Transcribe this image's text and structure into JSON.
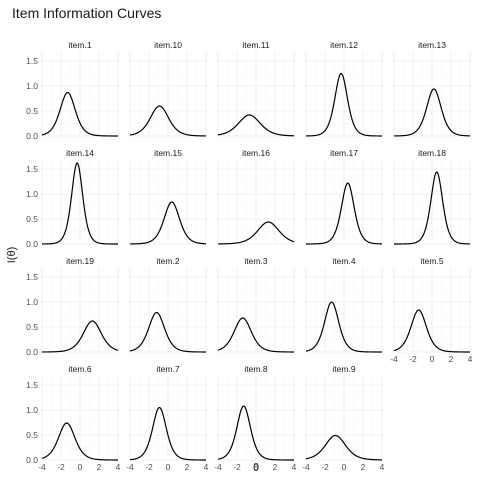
{
  "chart_data": {
    "type": "line",
    "title": "Item Information Curves",
    "xlabel": "θ",
    "ylabel": "I(θ)",
    "xlim": [
      -4,
      4
    ],
    "ylim": [
      0,
      1.7
    ],
    "x_ticks": [
      -4,
      -2,
      0,
      2,
      4
    ],
    "x_tick_labels": [
      "-4",
      "-2",
      "0",
      "2",
      "4"
    ],
    "y_ticks": [
      0,
      0.5,
      1.0,
      1.5
    ],
    "y_tick_labels": [
      "0.0",
      "0.5",
      "1.0",
      "1.5"
    ],
    "grid": true,
    "facets": [
      {
        "name": "item.1",
        "peak": 0.87,
        "location": -1.3
      },
      {
        "name": "item.10",
        "peak": 0.6,
        "location": -0.9
      },
      {
        "name": "item.11",
        "peak": 0.42,
        "location": -0.7
      },
      {
        "name": "item.12",
        "peak": 1.25,
        "location": -0.3
      },
      {
        "name": "item.13",
        "peak": 0.94,
        "location": 0.2
      },
      {
        "name": "item.14",
        "peak": 1.62,
        "location": -0.3
      },
      {
        "name": "item.15",
        "peak": 0.84,
        "location": 0.4
      },
      {
        "name": "item.16",
        "peak": 0.44,
        "location": 1.3
      },
      {
        "name": "item.17",
        "peak": 1.22,
        "location": 0.4
      },
      {
        "name": "item.18",
        "peak": 1.44,
        "location": 0.5
      },
      {
        "name": "item.19",
        "peak": 0.62,
        "location": 1.3
      },
      {
        "name": "item.2",
        "peak": 0.79,
        "location": -1.2
      },
      {
        "name": "item.3",
        "peak": 0.68,
        "location": -1.4
      },
      {
        "name": "item.4",
        "peak": 1.0,
        "location": -1.3
      },
      {
        "name": "item.5",
        "peak": 0.84,
        "location": -1.4
      },
      {
        "name": "item.6",
        "peak": 0.74,
        "location": -1.4
      },
      {
        "name": "item.7",
        "peak": 1.05,
        "location": -0.9
      },
      {
        "name": "item.8",
        "peak": 1.08,
        "location": -1.3
      },
      {
        "name": "item.9",
        "peak": 0.49,
        "location": -0.9
      }
    ]
  }
}
